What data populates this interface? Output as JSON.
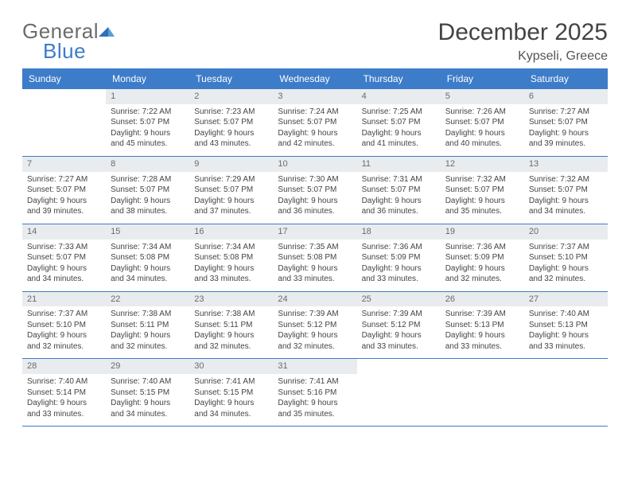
{
  "logo": {
    "word1": "General",
    "word2": "Blue"
  },
  "title": "December 2025",
  "location": "Kypseli, Greece",
  "colors": {
    "accent": "#3d7cc9",
    "header_bg": "#3d7cc9",
    "header_text": "#ffffff",
    "daynum_bg": "#e9ecef",
    "cell_text": "#444444",
    "page_bg": "#ffffff",
    "logo_gray": "#6c6c6c"
  },
  "day_names": [
    "Sunday",
    "Monday",
    "Tuesday",
    "Wednesday",
    "Thursday",
    "Friday",
    "Saturday"
  ],
  "weeks": [
    [
      null,
      {
        "n": "1",
        "sr": "Sunrise: 7:22 AM",
        "ss": "Sunset: 5:07 PM",
        "d1": "Daylight: 9 hours",
        "d2": "and 45 minutes."
      },
      {
        "n": "2",
        "sr": "Sunrise: 7:23 AM",
        "ss": "Sunset: 5:07 PM",
        "d1": "Daylight: 9 hours",
        "d2": "and 43 minutes."
      },
      {
        "n": "3",
        "sr": "Sunrise: 7:24 AM",
        "ss": "Sunset: 5:07 PM",
        "d1": "Daylight: 9 hours",
        "d2": "and 42 minutes."
      },
      {
        "n": "4",
        "sr": "Sunrise: 7:25 AM",
        "ss": "Sunset: 5:07 PM",
        "d1": "Daylight: 9 hours",
        "d2": "and 41 minutes."
      },
      {
        "n": "5",
        "sr": "Sunrise: 7:26 AM",
        "ss": "Sunset: 5:07 PM",
        "d1": "Daylight: 9 hours",
        "d2": "and 40 minutes."
      },
      {
        "n": "6",
        "sr": "Sunrise: 7:27 AM",
        "ss": "Sunset: 5:07 PM",
        "d1": "Daylight: 9 hours",
        "d2": "and 39 minutes."
      }
    ],
    [
      {
        "n": "7",
        "sr": "Sunrise: 7:27 AM",
        "ss": "Sunset: 5:07 PM",
        "d1": "Daylight: 9 hours",
        "d2": "and 39 minutes."
      },
      {
        "n": "8",
        "sr": "Sunrise: 7:28 AM",
        "ss": "Sunset: 5:07 PM",
        "d1": "Daylight: 9 hours",
        "d2": "and 38 minutes."
      },
      {
        "n": "9",
        "sr": "Sunrise: 7:29 AM",
        "ss": "Sunset: 5:07 PM",
        "d1": "Daylight: 9 hours",
        "d2": "and 37 minutes."
      },
      {
        "n": "10",
        "sr": "Sunrise: 7:30 AM",
        "ss": "Sunset: 5:07 PM",
        "d1": "Daylight: 9 hours",
        "d2": "and 36 minutes."
      },
      {
        "n": "11",
        "sr": "Sunrise: 7:31 AM",
        "ss": "Sunset: 5:07 PM",
        "d1": "Daylight: 9 hours",
        "d2": "and 36 minutes."
      },
      {
        "n": "12",
        "sr": "Sunrise: 7:32 AM",
        "ss": "Sunset: 5:07 PM",
        "d1": "Daylight: 9 hours",
        "d2": "and 35 minutes."
      },
      {
        "n": "13",
        "sr": "Sunrise: 7:32 AM",
        "ss": "Sunset: 5:07 PM",
        "d1": "Daylight: 9 hours",
        "d2": "and 34 minutes."
      }
    ],
    [
      {
        "n": "14",
        "sr": "Sunrise: 7:33 AM",
        "ss": "Sunset: 5:07 PM",
        "d1": "Daylight: 9 hours",
        "d2": "and 34 minutes."
      },
      {
        "n": "15",
        "sr": "Sunrise: 7:34 AM",
        "ss": "Sunset: 5:08 PM",
        "d1": "Daylight: 9 hours",
        "d2": "and 34 minutes."
      },
      {
        "n": "16",
        "sr": "Sunrise: 7:34 AM",
        "ss": "Sunset: 5:08 PM",
        "d1": "Daylight: 9 hours",
        "d2": "and 33 minutes."
      },
      {
        "n": "17",
        "sr": "Sunrise: 7:35 AM",
        "ss": "Sunset: 5:08 PM",
        "d1": "Daylight: 9 hours",
        "d2": "and 33 minutes."
      },
      {
        "n": "18",
        "sr": "Sunrise: 7:36 AM",
        "ss": "Sunset: 5:09 PM",
        "d1": "Daylight: 9 hours",
        "d2": "and 33 minutes."
      },
      {
        "n": "19",
        "sr": "Sunrise: 7:36 AM",
        "ss": "Sunset: 5:09 PM",
        "d1": "Daylight: 9 hours",
        "d2": "and 32 minutes."
      },
      {
        "n": "20",
        "sr": "Sunrise: 7:37 AM",
        "ss": "Sunset: 5:10 PM",
        "d1": "Daylight: 9 hours",
        "d2": "and 32 minutes."
      }
    ],
    [
      {
        "n": "21",
        "sr": "Sunrise: 7:37 AM",
        "ss": "Sunset: 5:10 PM",
        "d1": "Daylight: 9 hours",
        "d2": "and 32 minutes."
      },
      {
        "n": "22",
        "sr": "Sunrise: 7:38 AM",
        "ss": "Sunset: 5:11 PM",
        "d1": "Daylight: 9 hours",
        "d2": "and 32 minutes."
      },
      {
        "n": "23",
        "sr": "Sunrise: 7:38 AM",
        "ss": "Sunset: 5:11 PM",
        "d1": "Daylight: 9 hours",
        "d2": "and 32 minutes."
      },
      {
        "n": "24",
        "sr": "Sunrise: 7:39 AM",
        "ss": "Sunset: 5:12 PM",
        "d1": "Daylight: 9 hours",
        "d2": "and 32 minutes."
      },
      {
        "n": "25",
        "sr": "Sunrise: 7:39 AM",
        "ss": "Sunset: 5:12 PM",
        "d1": "Daylight: 9 hours",
        "d2": "and 33 minutes."
      },
      {
        "n": "26",
        "sr": "Sunrise: 7:39 AM",
        "ss": "Sunset: 5:13 PM",
        "d1": "Daylight: 9 hours",
        "d2": "and 33 minutes."
      },
      {
        "n": "27",
        "sr": "Sunrise: 7:40 AM",
        "ss": "Sunset: 5:13 PM",
        "d1": "Daylight: 9 hours",
        "d2": "and 33 minutes."
      }
    ],
    [
      {
        "n": "28",
        "sr": "Sunrise: 7:40 AM",
        "ss": "Sunset: 5:14 PM",
        "d1": "Daylight: 9 hours",
        "d2": "and 33 minutes."
      },
      {
        "n": "29",
        "sr": "Sunrise: 7:40 AM",
        "ss": "Sunset: 5:15 PM",
        "d1": "Daylight: 9 hours",
        "d2": "and 34 minutes."
      },
      {
        "n": "30",
        "sr": "Sunrise: 7:41 AM",
        "ss": "Sunset: 5:15 PM",
        "d1": "Daylight: 9 hours",
        "d2": "and 34 minutes."
      },
      {
        "n": "31",
        "sr": "Sunrise: 7:41 AM",
        "ss": "Sunset: 5:16 PM",
        "d1": "Daylight: 9 hours",
        "d2": "and 35 minutes."
      },
      null,
      null,
      null
    ]
  ]
}
